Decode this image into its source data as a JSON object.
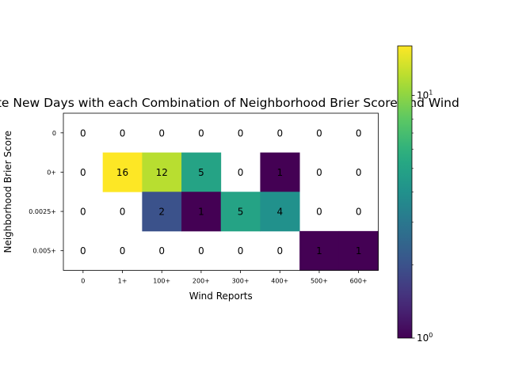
{
  "chart_data": {
    "type": "heatmap",
    "title": "Late New Days with each Combination of Neighborhood Brier Score and Wind",
    "xlabel": "Wind Reports",
    "ylabel": "Neighborhood Brier Score",
    "x_categories": [
      "0",
      "1+",
      "100+",
      "200+",
      "300+",
      "400+",
      "500+",
      "600+"
    ],
    "y_categories": [
      "0",
      "0+",
      "0.0025+",
      "0.005+"
    ],
    "values": [
      [
        0,
        0,
        0,
        0,
        0,
        0,
        0,
        0
      ],
      [
        0,
        16,
        12,
        5,
        0,
        1,
        0,
        0
      ],
      [
        0,
        0,
        2,
        1,
        5,
        4,
        0,
        0
      ],
      [
        0,
        0,
        0,
        0,
        0,
        0,
        1,
        1
      ]
    ],
    "colorscale": "viridis",
    "color_scale_type": "log",
    "color_range": [
      1,
      16
    ],
    "zero_cells_color": "#ffffff",
    "colorbar_ticks": [
      "10^0",
      "10^1"
    ]
  }
}
